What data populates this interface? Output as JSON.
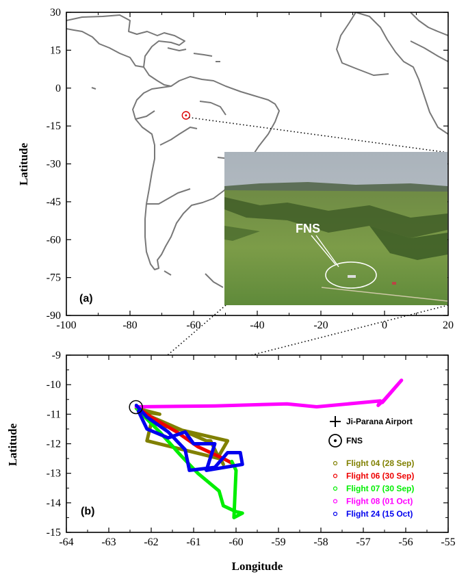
{
  "chart_data": [
    {
      "type": "map",
      "panel_label": "(a)",
      "xlabel": "",
      "ylabel": "Latitude",
      "xlim": [
        -100,
        20
      ],
      "ylim": [
        -90,
        30
      ],
      "xticks": [
        "-100",
        "-80",
        "-60",
        "-40",
        "-20",
        "0",
        "20"
      ],
      "yticks": [
        "30",
        "15",
        "0",
        "-15",
        "-30",
        "-45",
        "-60",
        "-75",
        "-90"
      ],
      "site_marker": {
        "lon": -62.4,
        "lat": -10.8,
        "color": "#dd0000"
      },
      "inset_photo": {
        "label": "FNS"
      }
    },
    {
      "type": "line",
      "panel_label": "(b)",
      "xlabel": "Longitude",
      "ylabel": "Latitude",
      "xlim": [
        -64,
        -55
      ],
      "ylim": [
        -15,
        -9
      ],
      "xticks": [
        "-64",
        "-63",
        "-62",
        "-61",
        "-60",
        "-59",
        "-58",
        "-57",
        "-56",
        "-55"
      ],
      "yticks": [
        "-9",
        "-10",
        "-11",
        "-12",
        "-13",
        "-14",
        "-15"
      ],
      "points": [
        {
          "name": "Ji-Parana Airport",
          "lon": -61.85,
          "lat": -10.87
        },
        {
          "name": "FNS",
          "lon": -62.36,
          "lat": -10.76
        }
      ],
      "series": [
        {
          "name": "Flight 04 (28 Sep)",
          "color": "#808000",
          "lon": [
            -62.35,
            -61.8,
            -62.3,
            -60.7,
            -60.6,
            -60.4,
            -62.1,
            -62.0,
            -60.2,
            -60.4,
            -60.3
          ],
          "lat": [
            -10.8,
            -11.0,
            -10.9,
            -11.9,
            -11.9,
            -12.5,
            -11.9,
            -11.3,
            -11.9,
            -12.4,
            -12.7
          ]
        },
        {
          "name": "Flight 06 (30 Sep)",
          "color": "#ee0000",
          "lon": [
            -62.35,
            -62.0,
            -61.4,
            -60.9,
            -60.3,
            -60.1
          ],
          "lat": [
            -10.75,
            -11.1,
            -11.6,
            -12.1,
            -12.5,
            -12.65
          ]
        },
        {
          "name": "Flight 07 (30 Sep)",
          "color": "#00ee00",
          "lon": [
            -62.35,
            -61.8,
            -61.3,
            -60.9,
            -60.4,
            -60.3,
            -60.0,
            -59.85,
            -60.05,
            -60.0,
            -60.1
          ],
          "lat": [
            -10.8,
            -11.6,
            -12.4,
            -13.0,
            -13.6,
            -14.1,
            -14.3,
            -14.35,
            -14.5,
            -12.9,
            -12.6
          ]
        },
        {
          "name": "Flight 08 (01 Oct)",
          "color": "#ff00ff",
          "lon": [
            -62.35,
            -60.5,
            -58.8,
            -58.1,
            -56.6,
            -56.65,
            -56.5,
            -56.1,
            -56.55
          ],
          "lat": [
            -10.75,
            -10.72,
            -10.65,
            -10.75,
            -10.55,
            -10.7,
            -10.5,
            -9.85,
            -10.6
          ]
        },
        {
          "name": "Flight 24 (15 Oct)",
          "color": "#0000ee",
          "lon": [
            -62.35,
            -62.1,
            -61.6,
            -61.2,
            -61.1,
            -60.5,
            -60.2,
            -59.9,
            -59.85,
            -60.7,
            -60.5,
            -61.0,
            -61.2,
            -61.6,
            -62.1,
            -62.3
          ],
          "lat": [
            -10.7,
            -11.1,
            -11.6,
            -12.2,
            -12.9,
            -12.8,
            -12.3,
            -12.3,
            -12.7,
            -12.9,
            -12.0,
            -12.0,
            -11.6,
            -11.8,
            -11.5,
            -10.9
          ]
        }
      ]
    }
  ]
}
